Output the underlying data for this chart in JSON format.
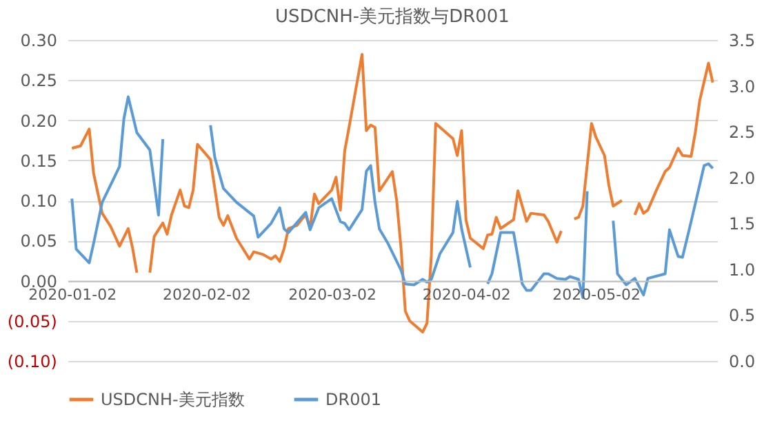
{
  "chart_data": {
    "type": "line",
    "title": "USDCNH-美元指数与DR001",
    "xlim": [
      "2020-01-01",
      "2020-05-30"
    ],
    "xticks": [
      "2020-01-02",
      "2020-02-02",
      "2020-03-02",
      "2020-04-02",
      "2020-05-02"
    ],
    "ylim": [
      -0.1,
      0.3
    ],
    "yticks": [
      {
        "value": -0.1,
        "label": "(0.10)"
      },
      {
        "value": -0.05,
        "label": "(0.05)"
      },
      {
        "value": 0,
        "label": "0.00"
      },
      {
        "value": 0.05,
        "label": "0.05"
      },
      {
        "value": 0.1,
        "label": "0.10"
      },
      {
        "value": 0.15,
        "label": "0.15"
      },
      {
        "value": 0.2,
        "label": "0.20"
      },
      {
        "value": 0.25,
        "label": "0.25"
      },
      {
        "value": 0.3,
        "label": "0.30"
      }
    ],
    "y2lim": [
      0,
      3.5
    ],
    "y2ticks": [
      {
        "value": 0,
        "label": "0.0"
      },
      {
        "value": 0.5,
        "label": "0.5"
      },
      {
        "value": 1,
        "label": "1.0"
      },
      {
        "value": 1.5,
        "label": "1.5"
      },
      {
        "value": 2,
        "label": "2.0"
      },
      {
        "value": 2.5,
        "label": "2.5"
      },
      {
        "value": 3,
        "label": "3.0"
      },
      {
        "value": 3.5,
        "label": "3.5"
      }
    ],
    "grid": "y",
    "legend": "bottom",
    "series": [
      {
        "name": "USDCNH-美元指数",
        "color": "#ed7d31",
        "x": [
          "2020-01-02",
          "2020-01-04",
          "2020-01-06",
          "2020-01-07",
          "2020-01-09",
          "2020-01-11",
          "2020-01-13",
          "2020-01-15",
          "2020-01-16",
          "2020-01-17",
          "2020-01-18",
          "2020-01-20",
          "2020-01-21",
          "2020-01-23",
          "2020-01-24",
          "2020-01-25",
          "2020-01-27",
          "2020-01-28",
          "2020-01-29",
          "2020-01-30",
          "2020-01-31",
          "2020-02-03",
          "2020-02-05",
          "2020-02-06",
          "2020-02-07",
          "2020-02-09",
          "2020-02-12",
          "2020-02-13",
          "2020-02-15",
          "2020-02-17",
          "2020-02-18",
          "2020-02-19",
          "2020-02-20",
          "2020-02-21",
          "2020-02-23",
          "2020-02-24",
          "2020-02-25",
          "2020-02-26",
          "2020-02-27",
          "2020-02-28",
          "2020-03-02",
          "2020-03-03",
          "2020-03-04",
          "2020-03-05",
          "2020-03-06",
          "2020-03-09",
          "2020-03-10",
          "2020-03-11",
          "2020-03-12",
          "2020-03-13",
          "2020-03-16",
          "2020-03-17",
          "2020-03-18",
          "2020-03-19",
          "2020-03-20",
          "2020-03-23",
          "2020-03-24",
          "2020-03-25",
          "2020-03-26",
          "2020-03-30",
          "2020-03-31",
          "2020-04-01",
          "2020-04-02",
          "2020-04-03",
          "2020-04-06",
          "2020-04-07",
          "2020-04-08",
          "2020-04-09",
          "2020-04-10",
          "2020-04-13",
          "2020-04-14",
          "2020-04-16",
          "2020-04-17",
          "2020-04-20",
          "2020-04-21",
          "2020-04-23",
          "2020-04-24",
          "2020-04-25",
          "2020-04-27",
          "2020-04-28",
          "2020-04-29",
          "2020-05-01",
          "2020-05-02",
          "2020-05-04",
          "2020-05-05",
          "2020-05-06",
          "2020-05-08",
          "2020-05-09",
          "2020-05-11",
          "2020-05-12",
          "2020-05-13",
          "2020-05-14",
          "2020-05-16",
          "2020-05-18",
          "2020-05-19",
          "2020-05-21",
          "2020-05-22",
          "2020-05-24",
          "2020-05-25",
          "2020-05-26",
          "2020-05-28",
          "2020-05-29"
        ],
        "values": [
          0.165,
          0.168,
          0.189,
          0.134,
          0.084,
          0.067,
          0.043,
          0.065,
          0.041,
          0.01,
          null,
          0.01,
          0.055,
          0.072,
          0.058,
          0.082,
          0.113,
          0.093,
          0.091,
          0.113,
          0.17,
          0.151,
          0.079,
          0.069,
          0.081,
          0.053,
          0.027,
          0.036,
          0.033,
          0.027,
          0.031,
          0.024,
          0.04,
          0.065,
          0.069,
          0.076,
          0.082,
          0.065,
          0.108,
          0.096,
          0.113,
          0.129,
          0.088,
          0.162,
          0.191,
          0.282,
          0.187,
          0.194,
          0.191,
          0.112,
          0.136,
          0.1,
          0.041,
          -0.038,
          -0.05,
          -0.064,
          -0.053,
          0.031,
          0.196,
          0.177,
          0.156,
          0.187,
          0.076,
          0.053,
          0.04,
          0.057,
          0.058,
          0.079,
          0.065,
          0.076,
          0.112,
          0.074,
          0.084,
          0.082,
          0.074,
          0.048,
          0.062,
          null,
          0.077,
          0.079,
          0.093,
          0.196,
          0.179,
          0.156,
          0.119,
          0.093,
          0.1,
          null,
          0.082,
          0.096,
          0.084,
          0.088,
          0.113,
          0.136,
          0.141,
          0.165,
          0.156,
          0.155,
          0.186,
          0.225,
          0.271,
          0.247
        ]
      },
      {
        "name": "DR001",
        "color": "#5b9bd5",
        "axis": "y2",
        "x": [
          "2020-01-02",
          "2020-01-03",
          "2020-01-06",
          "2020-01-07",
          "2020-01-09",
          "2020-01-13",
          "2020-01-14",
          "2020-01-15",
          "2020-01-17",
          "2020-01-20",
          "2020-01-22",
          "2020-01-23",
          "2020-01-24",
          "2020-02-03",
          "2020-02-04",
          "2020-02-06",
          "2020-02-09",
          "2020-02-13",
          "2020-02-14",
          "2020-02-17",
          "2020-02-19",
          "2020-02-20",
          "2020-02-21",
          "2020-02-25",
          "2020-02-26",
          "2020-02-28",
          "2020-03-02",
          "2020-03-04",
          "2020-03-05",
          "2020-03-06",
          "2020-03-09",
          "2020-03-10",
          "2020-03-11",
          "2020-03-12",
          "2020-03-13",
          "2020-03-15",
          "2020-03-18",
          "2020-03-19",
          "2020-03-21",
          "2020-03-23",
          "2020-03-24",
          "2020-03-25",
          "2020-03-27",
          "2020-03-30",
          "2020-03-31",
          "2020-04-01",
          "2020-04-03",
          "2020-04-04",
          "2020-04-07",
          "2020-04-08",
          "2020-04-10",
          "2020-04-13",
          "2020-04-14",
          "2020-04-15",
          "2020-04-16",
          "2020-04-17",
          "2020-04-20",
          "2020-04-21",
          "2020-04-23",
          "2020-04-25",
          "2020-04-26",
          "2020-04-28",
          "2020-04-29",
          "2020-04-30",
          "2020-05-01",
          "2020-05-06",
          "2020-05-07",
          "2020-05-09",
          "2020-05-11",
          "2020-05-13",
          "2020-05-14",
          "2020-05-18",
          "2020-05-19",
          "2020-05-21",
          "2020-05-22",
          "2020-05-24",
          "2020-05-27",
          "2020-05-28",
          "2020-05-29"
        ],
        "values": [
          1.77,
          1.22,
          1.07,
          1.28,
          1.73,
          2.12,
          2.64,
          2.88,
          2.49,
          2.3,
          1.59,
          2.42,
          null,
          2.57,
          2.22,
          1.88,
          1.73,
          1.58,
          1.35,
          1.5,
          1.67,
          1.44,
          1.4,
          1.62,
          1.43,
          1.67,
          1.77,
          1.52,
          1.5,
          1.43,
          1.65,
          2.07,
          2.13,
          1.73,
          1.44,
          1.28,
          0.99,
          0.84,
          0.83,
          0.89,
          0.86,
          0.89,
          1.17,
          1.4,
          1.74,
          1.44,
          1.02,
          null,
          0.84,
          0.95,
          1.4,
          1.4,
          1.13,
          0.84,
          0.77,
          0.77,
          0.95,
          0.95,
          0.9,
          0.89,
          0.92,
          0.89,
          0.69,
          1.85,
          null,
          1.53,
          0.95,
          0.83,
          0.9,
          0.72,
          0.9,
          0.95,
          1.43,
          1.14,
          1.13,
          1.52,
          2.13,
          2.15,
          2.1
        ]
      }
    ]
  }
}
